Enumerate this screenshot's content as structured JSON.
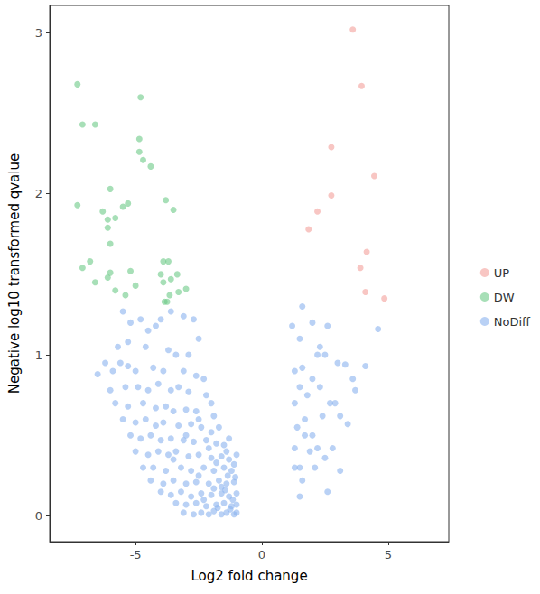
{
  "chart_data": {
    "type": "scatter",
    "x_label": "Log2 fold change",
    "y_label": "Negative log10 transformed qvalue",
    "xlim": [
      -8.4,
      7.4
    ],
    "ylim": [
      -0.16,
      3.17
    ],
    "xticks": [
      -5,
      0,
      5
    ],
    "yticks": [
      0,
      1,
      2,
      3
    ],
    "grid": false,
    "legend": "right",
    "marker": "circle",
    "series": [
      {
        "name": "UP",
        "color": "#f4a09b",
        "x": [
          3.6,
          3.95,
          2.75,
          4.45,
          2.75,
          2.2,
          1.85,
          4.15,
          3.9,
          4.1,
          4.85
        ],
        "values": [
          3.02,
          2.67,
          2.29,
          2.11,
          1.99,
          1.89,
          1.78,
          1.64,
          1.54,
          1.39,
          1.35
        ]
      },
      {
        "name": "DW",
        "color": "#6cc987",
        "x": [
          -7.3,
          -7.1,
          -6.6,
          -4.8,
          -4.85,
          -4.85,
          -4.7,
          -4.4,
          -5.3,
          -5.5,
          -6.0,
          -6.3,
          -6.1,
          -5.8,
          -6.1,
          -6.0,
          -7.3,
          -6.8,
          -7.1,
          -6.0,
          -6.1,
          -6.6,
          -5.8,
          -5.4,
          -5.0,
          -5.2,
          -3.8,
          -3.5,
          -3.9,
          -3.7,
          -4.0,
          -3.6,
          -3.35,
          -3.65,
          -3.85,
          -3.75,
          -3.9,
          -3.3,
          -3.0
        ],
        "values": [
          2.68,
          2.43,
          2.43,
          2.6,
          2.34,
          2.26,
          2.21,
          2.17,
          1.94,
          1.92,
          2.03,
          1.89,
          1.84,
          1.85,
          1.79,
          1.69,
          1.93,
          1.58,
          1.54,
          1.51,
          1.48,
          1.45,
          1.4,
          1.37,
          1.43,
          1.52,
          1.96,
          1.9,
          1.58,
          1.58,
          1.5,
          1.47,
          1.5,
          1.37,
          1.33,
          1.33,
          1.45,
          1.39,
          1.41
        ]
      },
      {
        "name": "NoDiff",
        "color": "#8ab2ee",
        "x": [
          1.6,
          1.2,
          1.5,
          2.0,
          2.3,
          2.5,
          2.2,
          2.6,
          4.6,
          1.3,
          1.6,
          1.5,
          1.3,
          1.8,
          2.0,
          1.4,
          1.7,
          2.0,
          2.2,
          1.3,
          1.5,
          1.3,
          2.4,
          2.7,
          2.9,
          2.5,
          2.8,
          3.1,
          3.3,
          3.0,
          3.6,
          4.1,
          3.7,
          3.4,
          3.1,
          2.6,
          1.5,
          1.6,
          2.1,
          1.9,
          2.3,
          1.7,
          -5.5,
          -5.2,
          -4.8,
          -4.5,
          -4.2,
          -4.0,
          -3.6,
          -3.1,
          -2.7,
          -2.5,
          -5.7,
          -5.3,
          -4.6,
          -3.7,
          -3.4,
          -2.9,
          -6.2,
          -5.9,
          -5.6,
          -5.3,
          -5.0,
          -4.3,
          -3.9,
          -3.1,
          -2.6,
          -2.3,
          -6.5,
          -6.0,
          -5.4,
          -4.9,
          -4.5,
          -4.1,
          -3.6,
          -3.3,
          -2.9,
          -2.2,
          -2.0,
          -5.8,
          -5.3,
          -4.7,
          -4.2,
          -3.8,
          -3.5,
          -3.0,
          -2.6,
          -1.9,
          -5.5,
          -5.0,
          -4.6,
          -4.2,
          -3.9,
          -3.3,
          -2.8,
          -2.4,
          -1.7,
          -5.2,
          -4.8,
          -4.4,
          -4.0,
          -3.6,
          -3.1,
          -2.7,
          -2.2,
          -1.8,
          -1.5,
          -5.0,
          -4.5,
          -4.1,
          -3.7,
          -3.4,
          -2.9,
          -2.5,
          -2.0,
          -1.6,
          -1.3,
          -4.7,
          -4.3,
          -3.8,
          -3.2,
          -2.8,
          -2.3,
          -1.9,
          -1.5,
          -1.2,
          -4.4,
          -3.9,
          -3.5,
          -3.0,
          -2.6,
          -2.1,
          -1.7,
          -1.4,
          -1.1,
          -4.0,
          -3.6,
          -3.2,
          -2.8,
          -2.4,
          -2.0,
          -1.6,
          -1.3,
          -1.0,
          -3.4,
          -3.0,
          -2.6,
          -2.2,
          -1.8,
          -1.5,
          -1.2,
          -1.0,
          -3.1,
          -2.7,
          -2.4,
          -2.1,
          -1.9,
          -1.6,
          -1.4,
          -1.1,
          -1.0,
          -1.25,
          -1.75,
          -2.3,
          -1.45,
          -1.15,
          -1.05,
          -1.35,
          -1.6,
          -1.9,
          -2.5,
          -1.1,
          -1.4,
          -1.8,
          -2.1,
          -2.0,
          -1.3,
          -2.5,
          -3.0,
          -3.5,
          -1.0
        ],
        "values": [
          1.3,
          1.18,
          1.1,
          1.2,
          1.05,
          1.0,
          1.0,
          1.18,
          1.16,
          0.9,
          0.92,
          0.8,
          0.7,
          0.75,
          0.85,
          0.55,
          0.6,
          0.5,
          0.42,
          0.42,
          0.3,
          0.3,
          0.62,
          0.7,
          0.7,
          0.36,
          0.42,
          0.62,
          0.94,
          0.95,
          0.85,
          0.93,
          0.78,
          0.57,
          0.28,
          0.15,
          0.12,
          0.22,
          0.3,
          0.4,
          0.8,
          0.5,
          1.27,
          1.2,
          1.22,
          1.15,
          1.18,
          1.22,
          1.27,
          1.24,
          1.22,
          1.1,
          1.05,
          1.08,
          1.05,
          1.03,
          1.0,
          1.0,
          0.95,
          0.9,
          0.95,
          0.93,
          0.9,
          0.92,
          0.9,
          0.9,
          0.87,
          0.85,
          0.88,
          0.78,
          0.8,
          0.8,
          0.78,
          0.82,
          0.78,
          0.8,
          0.77,
          0.75,
          0.7,
          0.7,
          0.68,
          0.7,
          0.67,
          0.68,
          0.65,
          0.66,
          0.65,
          0.62,
          0.6,
          0.58,
          0.6,
          0.56,
          0.58,
          0.56,
          0.57,
          0.55,
          0.55,
          0.5,
          0.48,
          0.5,
          0.47,
          0.48,
          0.47,
          0.46,
          0.47,
          0.45,
          0.44,
          0.4,
          0.38,
          0.4,
          0.38,
          0.4,
          0.37,
          0.38,
          0.36,
          0.37,
          0.35,
          0.3,
          0.3,
          0.28,
          0.3,
          0.28,
          0.3,
          0.28,
          0.3,
          0.28,
          0.22,
          0.2,
          0.22,
          0.2,
          0.21,
          0.2,
          0.22,
          0.2,
          0.21,
          0.15,
          0.13,
          0.15,
          0.12,
          0.14,
          0.13,
          0.14,
          0.12,
          0.14,
          0.08,
          0.07,
          0.08,
          0.06,
          0.07,
          0.08,
          0.06,
          0.07,
          0.02,
          0.01,
          0.02,
          0.01,
          0.03,
          0.01,
          0.02,
          0.01,
          0.02,
          0.04,
          0.05,
          0.1,
          0.16,
          0.1,
          0.24,
          0.25,
          0.18,
          0.17,
          0.25,
          0.32,
          0.4,
          0.33,
          0.42,
          0.52,
          0.48,
          0.6,
          0.5,
          0.35,
          0.38
        ]
      }
    ]
  }
}
